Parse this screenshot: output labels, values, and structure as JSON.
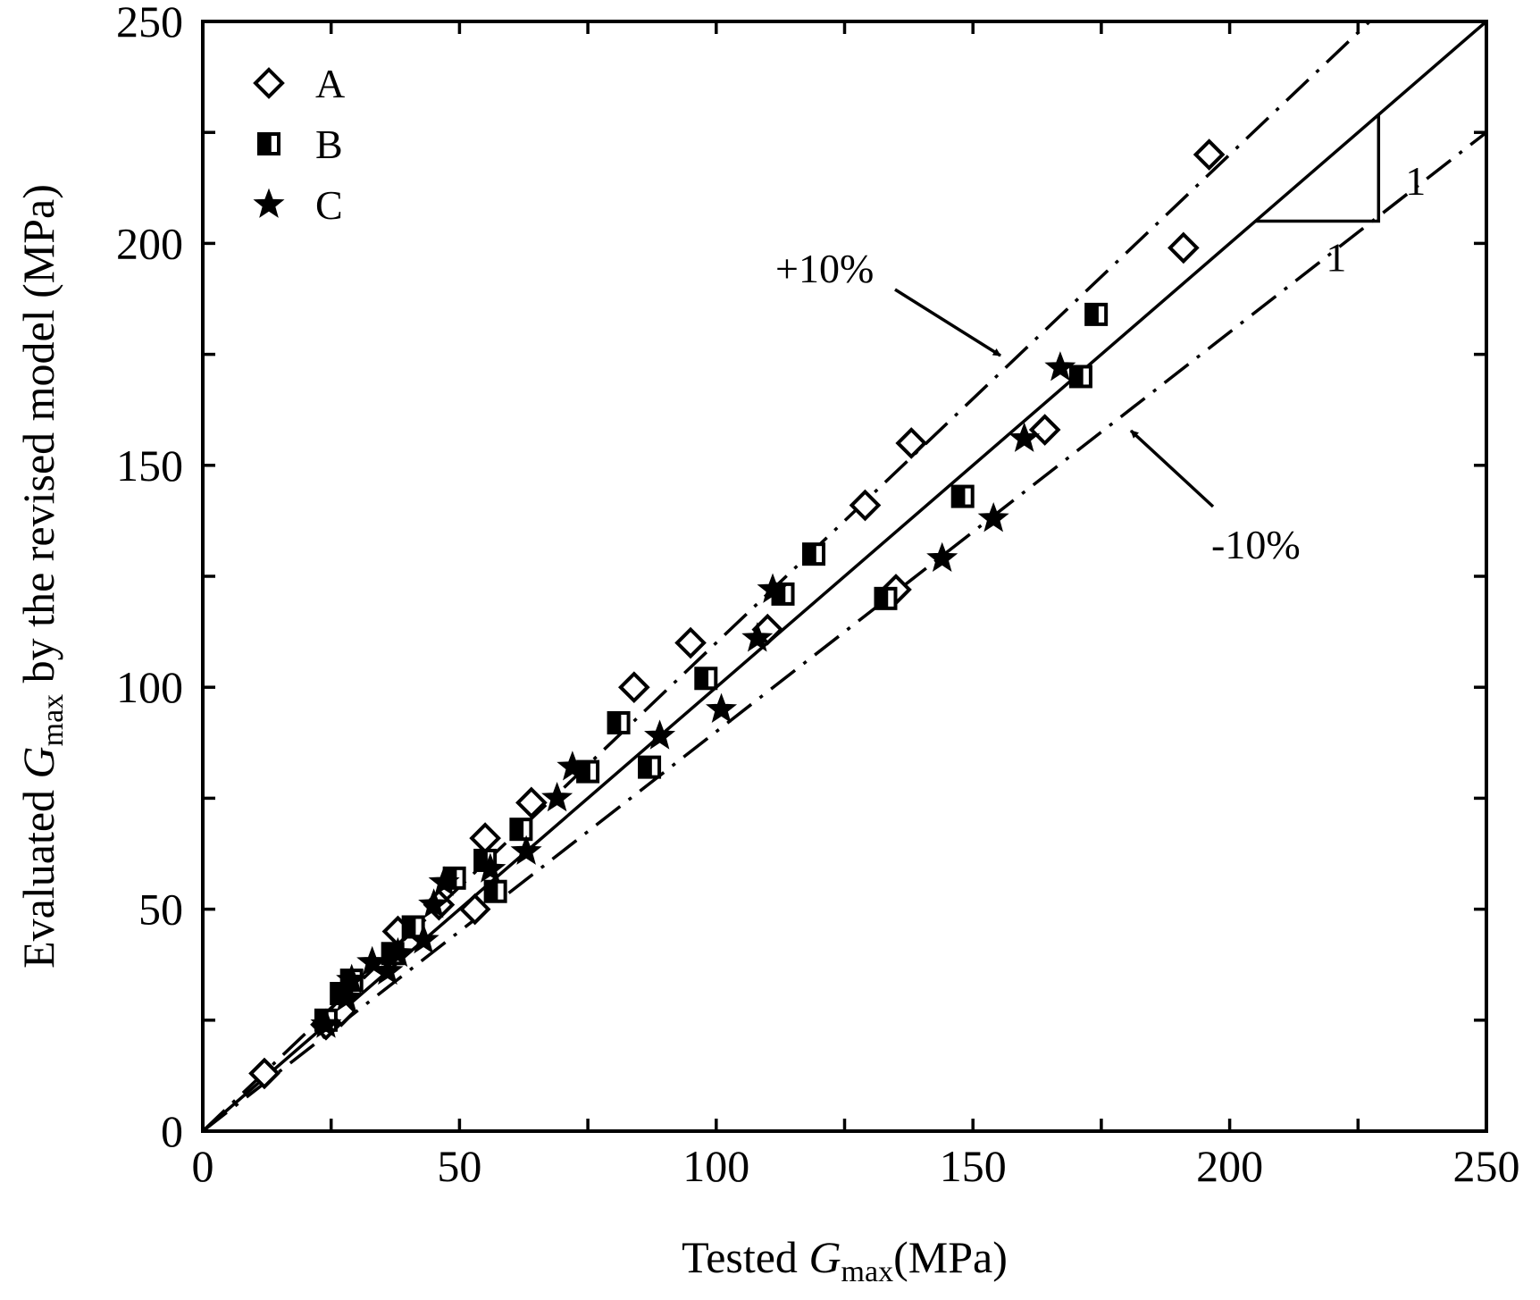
{
  "chart_data": {
    "type": "scatter",
    "xlabel": {
      "prefix": "Tested ",
      "var": "G",
      "sub": "max",
      "suffix": "(MPa)"
    },
    "ylabel": {
      "prefix": "Evaluated ",
      "var": "G",
      "sub": "max",
      "suffix": " by the revised model (MPa)"
    },
    "xlim": [
      0,
      250
    ],
    "ylim": [
      0,
      250
    ],
    "xticks": [
      "0",
      "50",
      "100",
      "150",
      "200",
      "250"
    ],
    "yticks": [
      "0",
      "50",
      "100",
      "150",
      "200",
      "250"
    ],
    "grid": false,
    "legend_position": "top-left",
    "reference_lines": [
      {
        "label": "",
        "slope": 1.0,
        "style": "solid"
      },
      {
        "label": "+10%",
        "slope": 1.1,
        "style": "dash-dot"
      },
      {
        "label": "-10%",
        "slope": 0.9,
        "style": "dash-dot"
      }
    ],
    "slope_triangle": {
      "rise_label": "1",
      "run_label": "1"
    },
    "series": [
      {
        "name": "A",
        "marker": "open-diamond",
        "points": [
          [
            12,
            13
          ],
          [
            24,
            24
          ],
          [
            27,
            27
          ],
          [
            38,
            45
          ],
          [
            46,
            51
          ],
          [
            53,
            50
          ],
          [
            55,
            66
          ],
          [
            64,
            74
          ],
          [
            84,
            100
          ],
          [
            95,
            110
          ],
          [
            110,
            113
          ],
          [
            129,
            141
          ],
          [
            135,
            122
          ],
          [
            138,
            155
          ],
          [
            164,
            158
          ],
          [
            191,
            199
          ],
          [
            196,
            220
          ]
        ]
      },
      {
        "name": "B",
        "marker": "half-filled-square",
        "points": [
          [
            24,
            25
          ],
          [
            27,
            31
          ],
          [
            29,
            34
          ],
          [
            37,
            40
          ],
          [
            41,
            46
          ],
          [
            49,
            57
          ],
          [
            55,
            61
          ],
          [
            57,
            54
          ],
          [
            62,
            68
          ],
          [
            75,
            81
          ],
          [
            81,
            92
          ],
          [
            87,
            82
          ],
          [
            98,
            102
          ],
          [
            113,
            121
          ],
          [
            119,
            130
          ],
          [
            133,
            120
          ],
          [
            148,
            143
          ],
          [
            171,
            170
          ],
          [
            174,
            184
          ]
        ]
      },
      {
        "name": "C",
        "marker": "filled-star",
        "points": [
          [
            24,
            24
          ],
          [
            28,
            30
          ],
          [
            29,
            34
          ],
          [
            33,
            38
          ],
          [
            36,
            36
          ],
          [
            38,
            40
          ],
          [
            43,
            43
          ],
          [
            45,
            51
          ],
          [
            47,
            56
          ],
          [
            56,
            59
          ],
          [
            63,
            63
          ],
          [
            69,
            75
          ],
          [
            72,
            82
          ],
          [
            89,
            89
          ],
          [
            101,
            95
          ],
          [
            108,
            111
          ],
          [
            111,
            122
          ],
          [
            144,
            129
          ],
          [
            154,
            138
          ],
          [
            160,
            156
          ],
          [
            167,
            172
          ]
        ]
      }
    ]
  }
}
